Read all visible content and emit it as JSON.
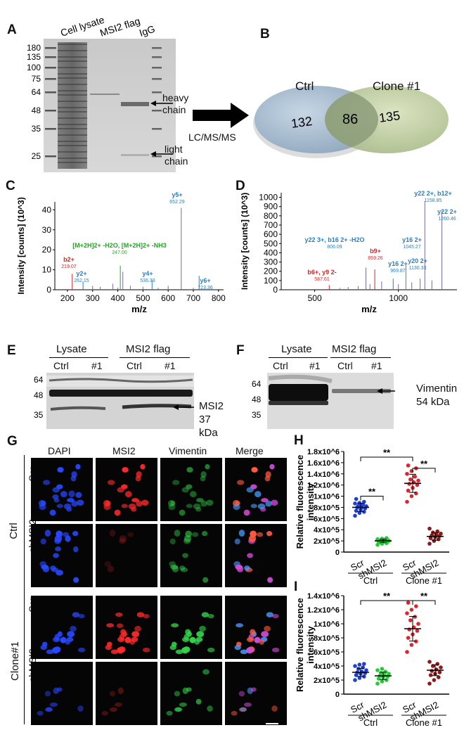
{
  "panels": {
    "A": {
      "letter": "A",
      "lane_labels": [
        "Cell lysate",
        "MSI2 flag",
        "IgG"
      ],
      "markers": [
        "180",
        "135",
        "100",
        "75",
        "64",
        "48",
        "35",
        "25"
      ],
      "marker_y": [
        68,
        81,
        96,
        112,
        131,
        157,
        183,
        222
      ],
      "heavy_chain": [
        "heavy",
        "chain"
      ],
      "light_chain": [
        "light",
        "chain"
      ],
      "method": "LC/MS/MS"
    },
    "B": {
      "letter": "B",
      "left_label": "Ctrl",
      "right_label": "Clone #1",
      "left_only": "132",
      "overlap": "86",
      "right_only": "135",
      "left_color": "#9db3c8",
      "right_color": "#b8c898"
    },
    "C": {
      "letter": "C",
      "ylabel": "Intensity [counts] (10^3)",
      "xlabel": "m/z",
      "yticks": [
        "0",
        "10",
        "20",
        "30",
        "40"
      ],
      "xticks": [
        "200",
        "300",
        "400",
        "500",
        "600",
        "700",
        "800"
      ],
      "annotations": [
        {
          "text": "y5+",
          "mz": "652.29",
          "color": "#2a7fc0"
        },
        {
          "text": "b2+",
          "mz": "219.07",
          "color": "#d02a2a"
        },
        {
          "text": "y2+",
          "mz": "262.15",
          "color": "#2a7fc0"
        },
        {
          "text": "[M+2H]2+ -H2O, [M+2H]2+ -NH3",
          "mz": "247.00",
          "color": "#2aa02a"
        },
        {
          "text": "y4+",
          "mz": "536.33",
          "color": "#2a7fc0"
        },
        {
          "text": "y6+",
          "mz": "723.36",
          "color": "#2a7fc0"
        }
      ]
    },
    "D": {
      "letter": "D",
      "ylabel": "Intensity [counts] (10^3)",
      "xlabel": "m/z",
      "yticks": [
        "0",
        "100",
        "200",
        "300",
        "400",
        "500",
        "600",
        "700",
        "800",
        "900",
        "1000"
      ],
      "xticks": [
        "500",
        "1000"
      ],
      "annotations": [
        {
          "text": "y22 2+, b12+",
          "mz": "1158.85",
          "color": "#2a7fc0"
        },
        {
          "text": "y22 2+",
          "mz": "1260.46",
          "color": "#2a7fc0"
        },
        {
          "text": "y22 3+, b16 2+ -H2O",
          "mz": "806.09",
          "color": "#2a7fc0"
        },
        {
          "text": "y16 2+",
          "mz": "1045.27",
          "color": "#2a7fc0"
        },
        {
          "text": "b9+",
          "mz": "859.26",
          "color": "#d02a2a"
        },
        {
          "text": "y16 2+",
          "mz": "969.87",
          "color": "#2a7fc0"
        },
        {
          "text": "y20 2+",
          "mz": "1130.33",
          "color": "#2a7fc0"
        },
        {
          "text": "b6+, y9 2-",
          "mz": "587.61",
          "color": "#d02a2a"
        }
      ]
    },
    "E": {
      "letter": "E",
      "group1": "Lysate",
      "group2": "MSI2 flag",
      "lanes": [
        "Ctrl",
        "#1",
        "Ctrl",
        "#1"
      ],
      "markers": [
        "64",
        "48",
        "35"
      ],
      "target": "MSI2",
      "size": "37 kDa"
    },
    "F": {
      "letter": "F",
      "group1": "Lysate",
      "group2": "MSI2 flag",
      "lanes": [
        "Ctrl",
        "#1",
        "Ctrl",
        "#1"
      ],
      "markers": [
        "64",
        "48",
        "35"
      ],
      "target": "Vimentin",
      "size": "54 kDa"
    },
    "G": {
      "letter": "G",
      "columns": [
        "DAPI",
        "MSI2",
        "Vimentin",
        "Merge"
      ],
      "group_ctrl": "Ctrl",
      "group_clone": "Clone#1",
      "rows": [
        "Scr",
        "shMSI2",
        "Scr",
        "shMSI2"
      ]
    },
    "H": {
      "letter": "H",
      "ylabel": [
        "Relative fluorescence",
        "intensity"
      ],
      "sig": [
        "**",
        "**",
        "**"
      ],
      "conditions": [
        "Scr",
        "shMSI2",
        "Scr",
        "shMSI2"
      ],
      "groups": [
        "Ctrl",
        "Clone #1"
      ]
    },
    "I": {
      "letter": "I",
      "ylabel": [
        "Relative fluorescence",
        "intensity"
      ],
      "sig": [
        "**",
        "**"
      ],
      "conditions": [
        "Scr",
        "shMSI2",
        "Scr",
        "shMSI2"
      ],
      "groups": [
        "Ctrl",
        "Clone #1"
      ]
    }
  },
  "chart_data": [
    {
      "type": "scatter",
      "panel": "H",
      "categories": [
        "Ctrl Scr",
        "Ctrl shMSI2",
        "Clone #1 Scr",
        "Clone #1 shMSI2"
      ],
      "ylim": [
        0,
        1800000
      ],
      "yticks": [
        "0",
        "2x10^5",
        "4x10^5",
        "6x10^5",
        "8x10^5",
        "1x10^6",
        "1.2x10^6",
        "1.4x10^6",
        "1.6x10^6",
        "1.8x10^6"
      ],
      "colors": [
        "#1f3fcf",
        "#22cc33",
        "#e0242e",
        "#8b1a1a"
      ],
      "series": [
        {
          "values": [
            650000,
            700000,
            720000,
            740000,
            760000,
            780000,
            800000,
            800000,
            820000,
            830000,
            850000,
            870000,
            880000,
            900000,
            950000
          ],
          "mean": 800000
        },
        {
          "values": [
            130000,
            150000,
            160000,
            170000,
            180000,
            185000,
            190000,
            200000,
            205000,
            210000,
            220000,
            230000,
            240000,
            250000
          ],
          "mean": 200000
        },
        {
          "values": [
            900000,
            1000000,
            1050000,
            1100000,
            1150000,
            1200000,
            1220000,
            1250000,
            1280000,
            1300000,
            1350000,
            1400000,
            1450000,
            1500000,
            1550000
          ],
          "mean": 1230000
        },
        {
          "values": [
            150000,
            200000,
            230000,
            250000,
            270000,
            290000,
            300000,
            310000,
            330000,
            350000,
            370000,
            420000
          ],
          "mean": 280000
        }
      ]
    },
    {
      "type": "scatter",
      "panel": "I",
      "categories": [
        "Ctrl Scr",
        "Ctrl shMSI2",
        "Clone #1 Scr",
        "Clone #1 shMSI2"
      ],
      "ylim": [
        0,
        1400000
      ],
      "yticks": [
        "0",
        "2x10^5",
        "4x10^5",
        "6x10^5",
        "8x10^5",
        "1x10^6",
        "1.2x10^6",
        "1.4x10^6"
      ],
      "colors": [
        "#1f3fcf",
        "#22cc33",
        "#e0242e",
        "#8b1a1a"
      ],
      "series": [
        {
          "values": [
            200000,
            230000,
            250000,
            270000,
            290000,
            300000,
            310000,
            320000,
            340000,
            360000,
            380000,
            400000,
            420000,
            430000
          ],
          "mean": 310000
        },
        {
          "values": [
            150000,
            180000,
            200000,
            220000,
            240000,
            250000,
            260000,
            270000,
            290000,
            300000,
            320000,
            340000,
            360000
          ],
          "mean": 260000
        },
        {
          "values": [
            600000,
            700000,
            750000,
            800000,
            850000,
            900000,
            920000,
            950000,
            1000000,
            1050000,
            1100000,
            1150000,
            1200000,
            1250000,
            1300000
          ],
          "mean": 930000
        },
        {
          "values": [
            150000,
            200000,
            240000,
            270000,
            290000,
            310000,
            330000,
            350000,
            380000,
            400000,
            430000,
            460000
          ],
          "mean": 340000
        }
      ]
    }
  ]
}
